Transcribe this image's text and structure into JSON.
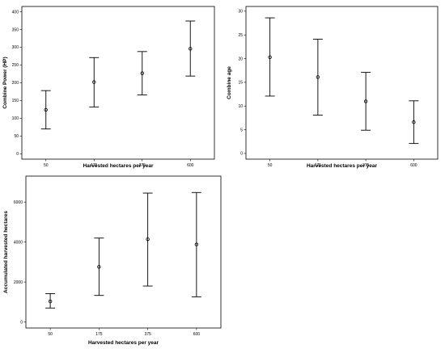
{
  "chart_data": [
    {
      "type": "errorbar",
      "title": "",
      "xlabel": "Harvested hectares per year",
      "ylabel": "Combine Power (HP)",
      "categories": [
        "50",
        "175",
        "375",
        "600"
      ],
      "yticks": [
        0,
        50,
        100,
        150,
        200,
        250,
        300,
        350,
        400
      ],
      "ylim": [
        -15,
        415
      ],
      "means": [
        124,
        202,
        227,
        296
      ],
      "lower": [
        70,
        132,
        166,
        219
      ],
      "upper": [
        178,
        271,
        288,
        374
      ],
      "grid": false
    },
    {
      "type": "errorbar",
      "title": "",
      "xlabel": "Harvested hectares per year",
      "ylabel": "Combine age",
      "categories": [
        "50",
        "175",
        "375",
        "600"
      ],
      "yticks": [
        0,
        5,
        10,
        15,
        20,
        25,
        30
      ],
      "ylim": [
        -1.2,
        31
      ],
      "means": [
        20.3,
        16.1,
        11.0,
        6.6
      ],
      "lower": [
        12.1,
        8.1,
        4.9,
        2.1
      ],
      "upper": [
        28.6,
        24.1,
        17.1,
        11.1
      ],
      "grid": false
    },
    {
      "type": "errorbar",
      "title": "",
      "xlabel": "Harvested hectares per year",
      "ylabel": "Accumulated harvested hectares",
      "categories": [
        "50",
        "175",
        "375",
        "600"
      ],
      "yticks": [
        0,
        2000,
        4000,
        6000
      ],
      "ylim": [
        -300,
        7300
      ],
      "means": [
        1030,
        2760,
        4140,
        3880
      ],
      "lower": [
        700,
        1330,
        1800,
        1260
      ],
      "upper": [
        1420,
        4200,
        6450,
        6480
      ],
      "grid": false
    }
  ]
}
